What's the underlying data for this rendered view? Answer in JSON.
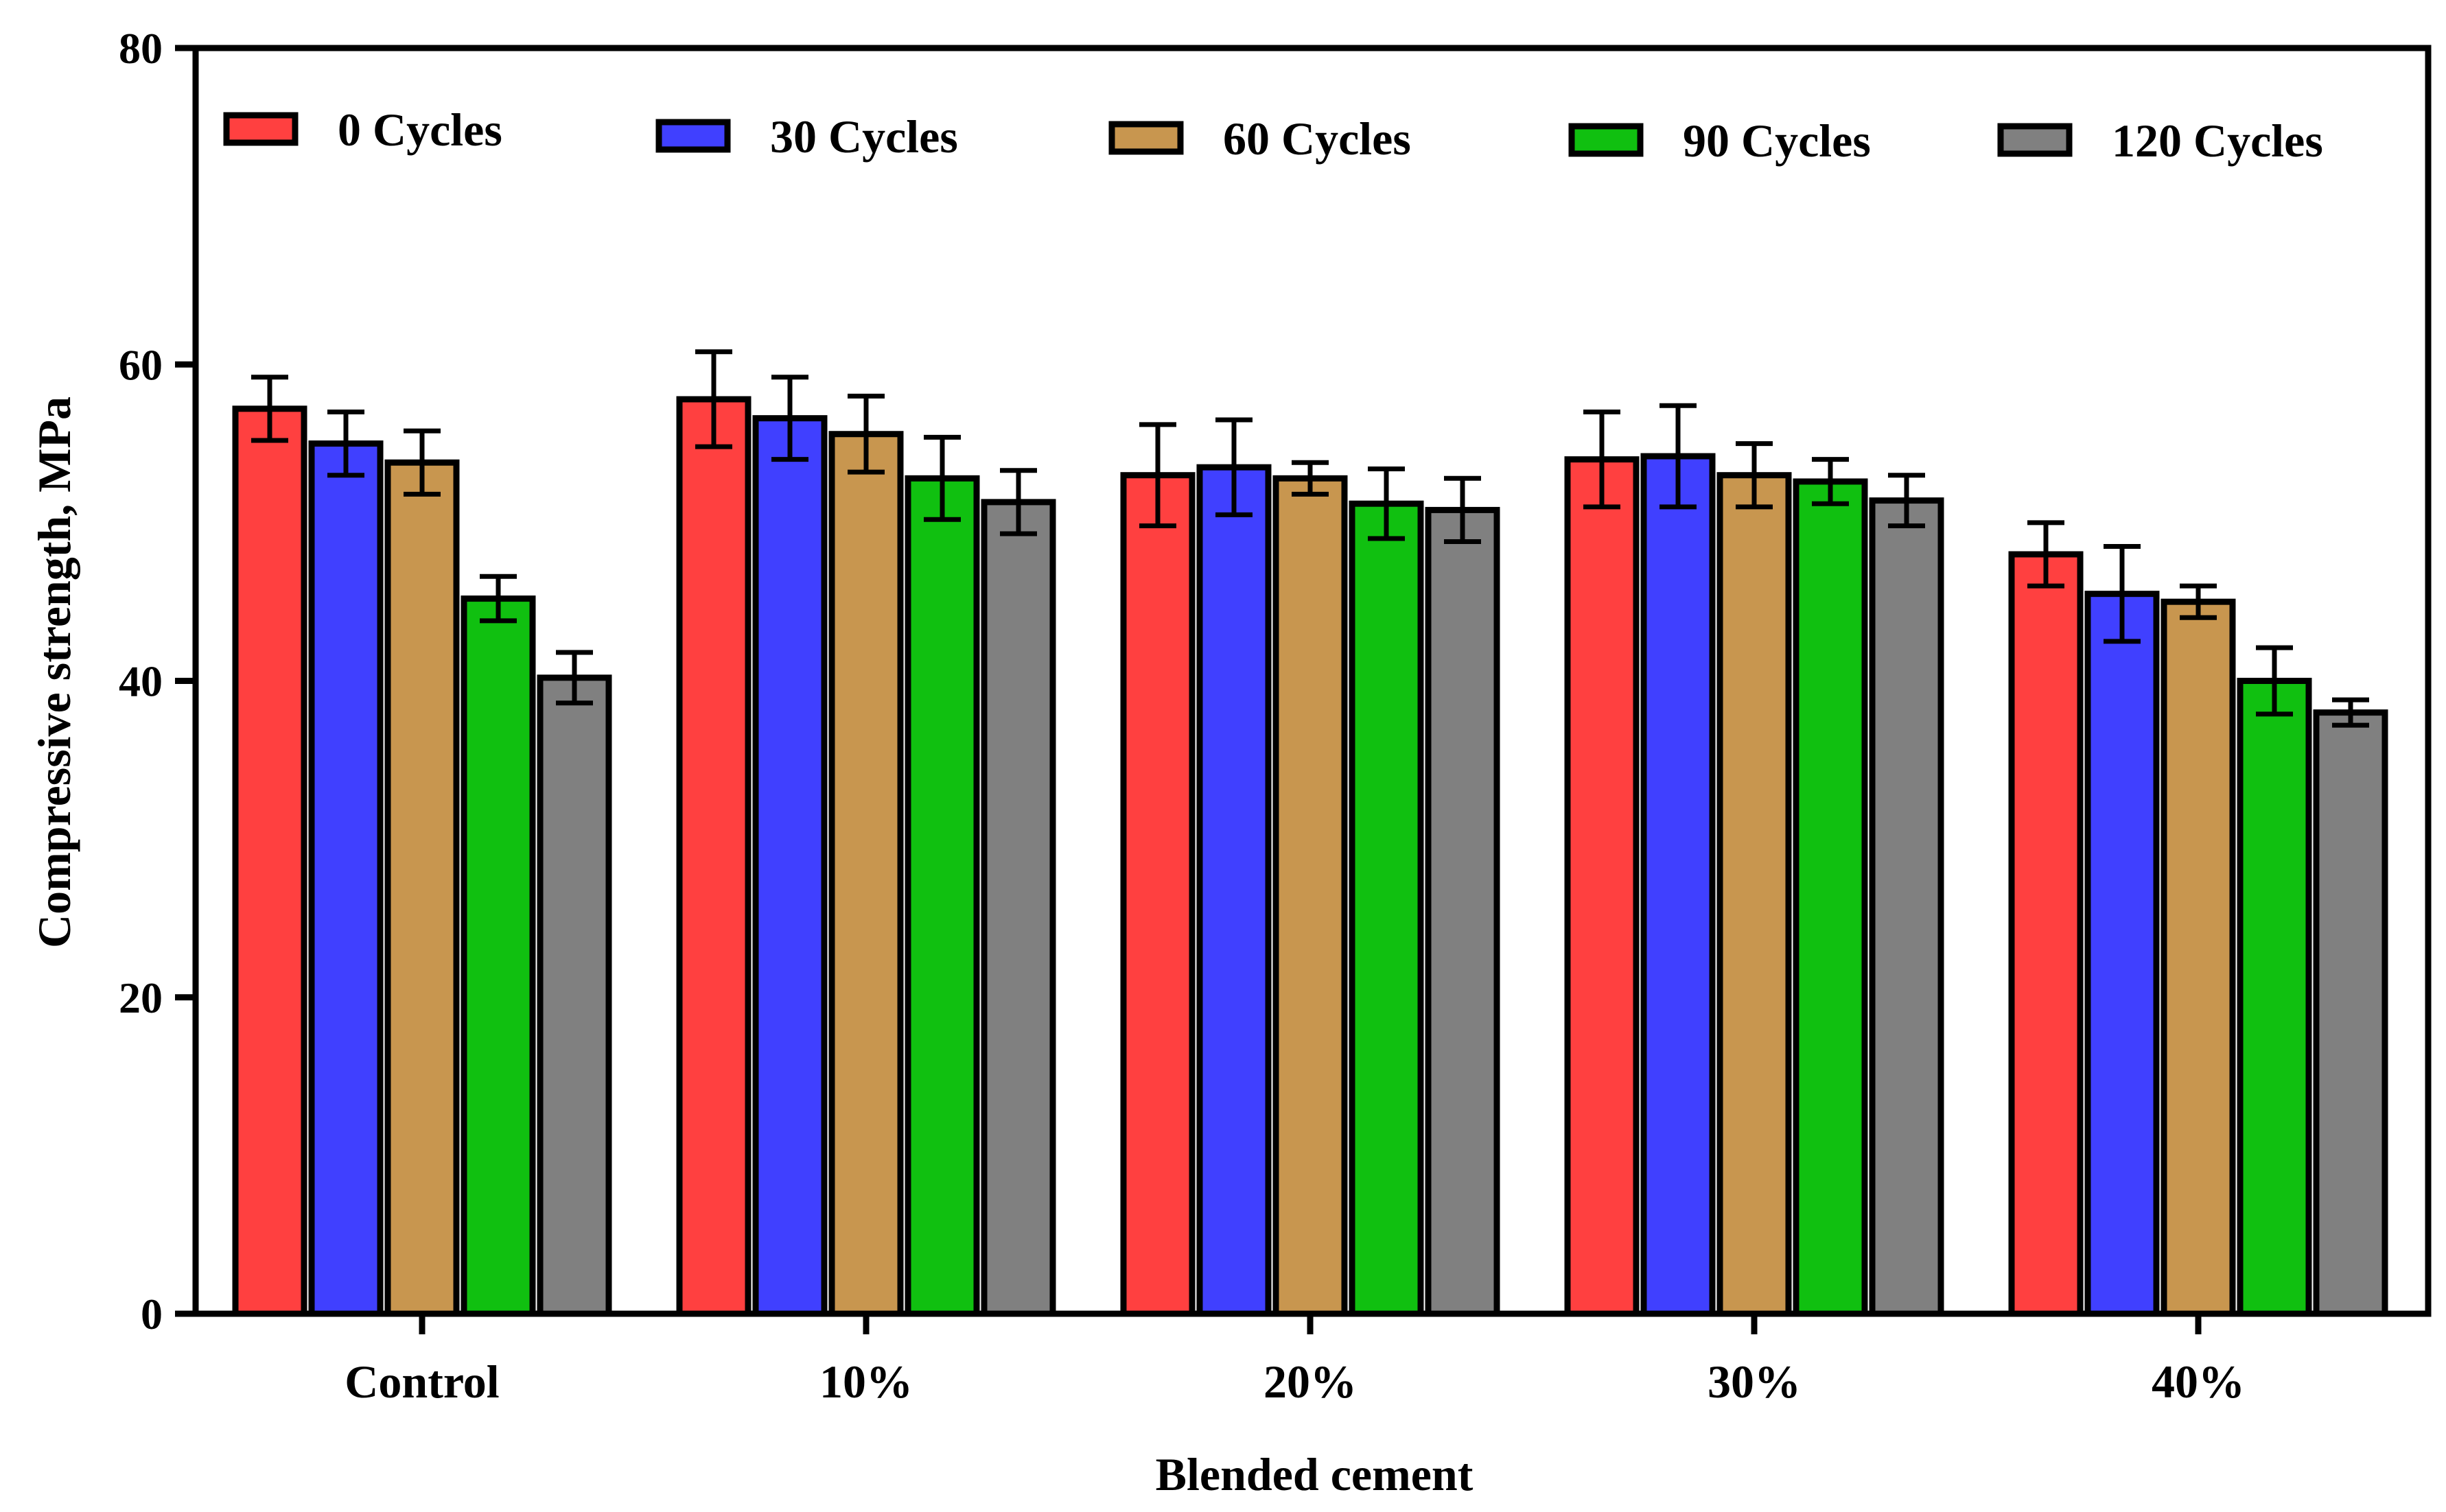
{
  "chart_data": {
    "type": "bar",
    "title": "",
    "xlabel": "Blended cement",
    "ylabel": "Compressive strength, MPa",
    "ylim": [
      0,
      80
    ],
    "yticks": [
      0,
      20,
      40,
      60,
      80
    ],
    "yticks_text": [
      "0",
      "20",
      "40",
      "60",
      "80"
    ],
    "grid": false,
    "legend_position": "top",
    "categories": [
      "Control",
      "10%",
      "20%",
      "30%",
      "40%"
    ],
    "series": [
      {
        "name": "0 Cycles",
        "color": "#ff4040",
        "values": [
          57.2,
          57.8,
          53.0,
          54.0,
          48.0
        ],
        "errors": [
          2.0,
          3.0,
          3.2,
          3.0,
          2.0
        ]
      },
      {
        "name": "30 Cycles",
        "color": "#4040ff",
        "values": [
          55.0,
          56.6,
          53.5,
          54.2,
          45.5
        ],
        "errors": [
          2.0,
          2.6,
          3.0,
          3.2,
          3.0
        ]
      },
      {
        "name": "60 Cycles",
        "color": "#c8964f",
        "values": [
          53.8,
          55.6,
          52.8,
          53.0,
          45.0
        ],
        "errors": [
          2.0,
          2.4,
          1.0,
          2.0,
          1.0
        ]
      },
      {
        "name": "90 Cycles",
        "color": "#10c010",
        "values": [
          45.2,
          52.8,
          51.2,
          52.6,
          40.0
        ],
        "errors": [
          1.4,
          2.6,
          2.2,
          1.4,
          2.1
        ]
      },
      {
        "name": "120 Cycles",
        "color": "#808080",
        "values": [
          40.2,
          51.3,
          50.8,
          51.4,
          38.0
        ],
        "errors": [
          1.6,
          2.0,
          2.0,
          1.6,
          0.8
        ]
      }
    ]
  }
}
